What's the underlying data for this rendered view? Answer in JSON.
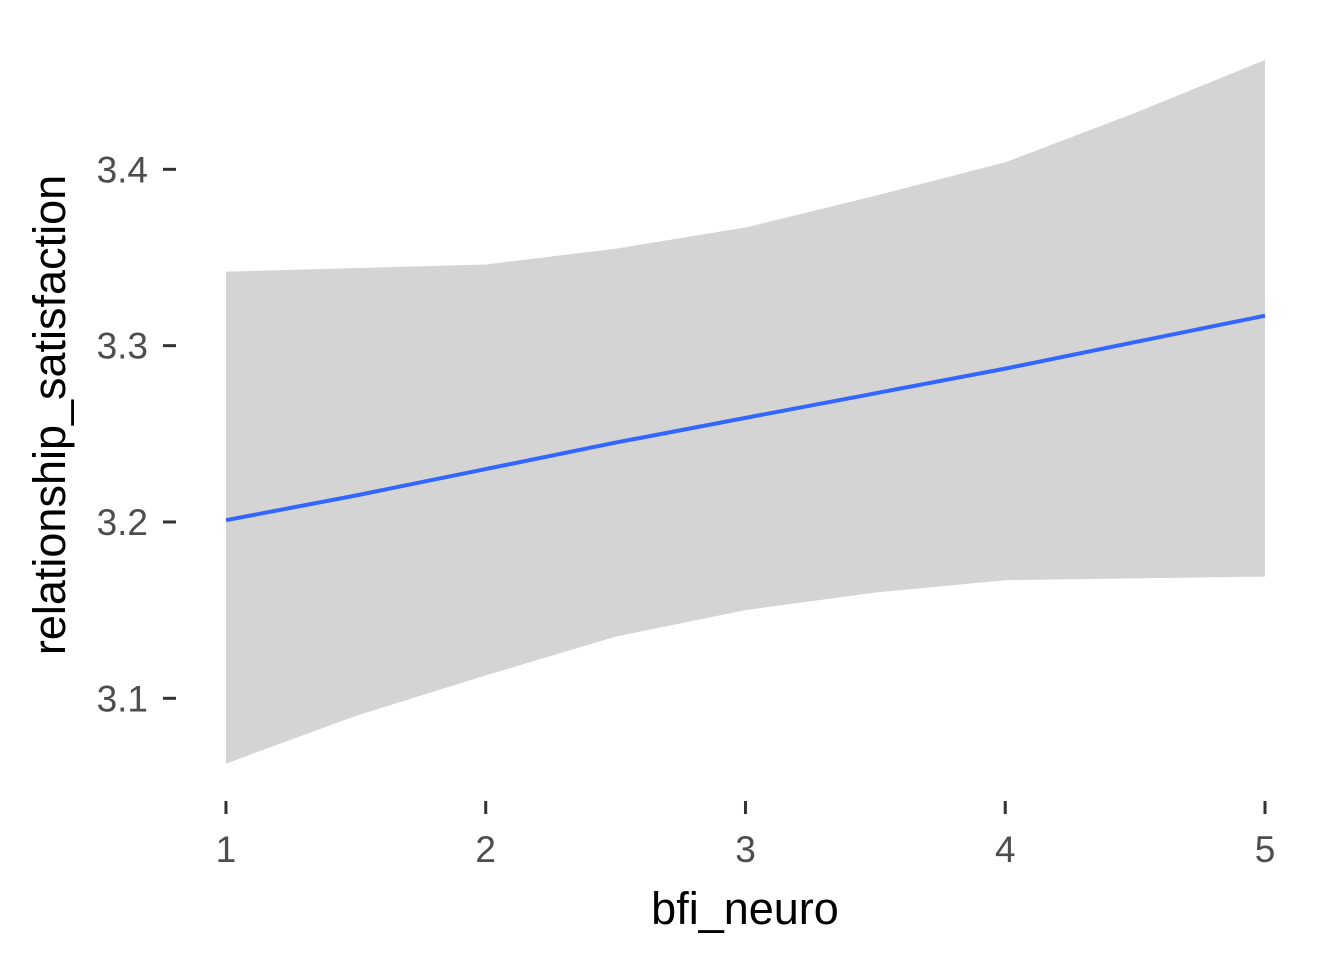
{
  "chart_data": {
    "type": "line",
    "title": "",
    "xlabel": "bfi_neuro",
    "ylabel": "relationship_satisfaction",
    "xlim": [
      0.85,
      5.0
    ],
    "ylim": [
      3.048,
      3.462
    ],
    "x_ticks": [
      1,
      2,
      3,
      4,
      5
    ],
    "y_ticks": [
      3.1,
      3.2,
      3.3,
      3.4
    ],
    "x_tick_labels": [
      "1",
      "2",
      "3",
      "4",
      "5"
    ],
    "y_tick_labels": [
      "3.1",
      "3.2",
      "3.3",
      "3.4"
    ],
    "grid": false,
    "legend": "none",
    "line_color": "#3366ff",
    "ribbon_color": "#d4d4d4",
    "series": [
      {
        "x": [
          1.0,
          1.5,
          2.0,
          2.5,
          3.0,
          3.5,
          4.0,
          4.5,
          5.0
        ],
        "y": [
          3.201,
          3.215,
          3.23,
          3.245,
          3.259,
          3.273,
          3.287,
          3.302,
          3.317
        ],
        "lower": [
          3.063,
          3.09,
          3.113,
          3.135,
          3.15,
          3.16,
          3.167,
          3.168,
          3.169
        ],
        "upper": [
          3.342,
          3.344,
          3.346,
          3.355,
          3.367,
          3.385,
          3.404,
          3.432,
          3.462
        ]
      }
    ]
  }
}
